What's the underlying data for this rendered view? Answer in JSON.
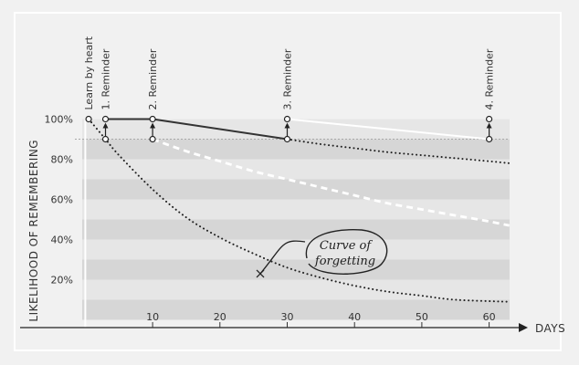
{
  "chart_data": {
    "type": "line",
    "xlabel": "DAYS",
    "ylabel": "LIKELIHOOD OF REMEMBERING",
    "xlim": [
      -2,
      63
    ],
    "ylim": [
      0,
      105
    ],
    "x_ticks": [
      10,
      20,
      30,
      40,
      50,
      60
    ],
    "x_tick_labels": [
      "10",
      "20",
      "30",
      "40",
      "50",
      "60"
    ],
    "y_ticks": [
      20,
      40,
      60,
      80,
      100
    ],
    "y_tick_labels": [
      "20%",
      "40%",
      "60%",
      "80%",
      "100%"
    ],
    "reference_line_y": 90,
    "band_colors": [
      "#d6d6d6",
      "#e6e6e6"
    ],
    "events": [
      {
        "label": "Learn by heart",
        "x": 0.5,
        "y": 100
      },
      {
        "label": "1. Reminder",
        "x": 3,
        "y": 100,
        "from_y": 90
      },
      {
        "label": "2. Reminder",
        "x": 10,
        "y": 100,
        "from_y": 90
      },
      {
        "label": "3. Reminder",
        "x": 30,
        "y": 100,
        "from_y": 90
      },
      {
        "label": "4. Reminder",
        "x": 60,
        "y": 100,
        "from_y": 90
      }
    ],
    "series": [
      {
        "style": "dotted",
        "color": "#222222",
        "x": [
          0.5,
          3,
          5,
          10,
          15,
          20,
          25,
          30,
          35,
          40,
          45,
          50,
          55,
          63
        ],
        "y": [
          100,
          90,
          82,
          65,
          51,
          41,
          33,
          26,
          21,
          17,
          14,
          12,
          10,
          9
        ]
      },
      {
        "style": "solid",
        "color": "#333333",
        "x": [
          3,
          10
        ],
        "y": [
          100,
          100
        ]
      },
      {
        "style": "solid",
        "color": "#333333",
        "x": [
          10,
          30
        ],
        "y": [
          100,
          90
        ]
      },
      {
        "style": "solid",
        "color": "#ffffff",
        "x": [
          30,
          60
        ],
        "y": [
          100,
          90
        ]
      },
      {
        "style": "dashed",
        "color": "#ffffff",
        "x": [
          10,
          15,
          20,
          25,
          30,
          35,
          40,
          45,
          50,
          55,
          60,
          63
        ],
        "y": [
          90,
          84,
          79,
          74,
          70,
          66,
          62,
          58,
          55,
          52,
          49,
          47
        ]
      },
      {
        "style": "dotted",
        "color": "#222222",
        "x": [
          30,
          35,
          40,
          45,
          50,
          55,
          60,
          63
        ],
        "y": [
          90,
          87.5,
          85.5,
          83.5,
          82,
          80.5,
          79,
          78
        ]
      }
    ],
    "annotations": [
      {
        "text": "Curve of forgetting",
        "lines": [
          "Curve of",
          "forgetting"
        ],
        "target": {
          "x": 26,
          "y": 23
        }
      }
    ],
    "grid": "horizontal bands"
  }
}
